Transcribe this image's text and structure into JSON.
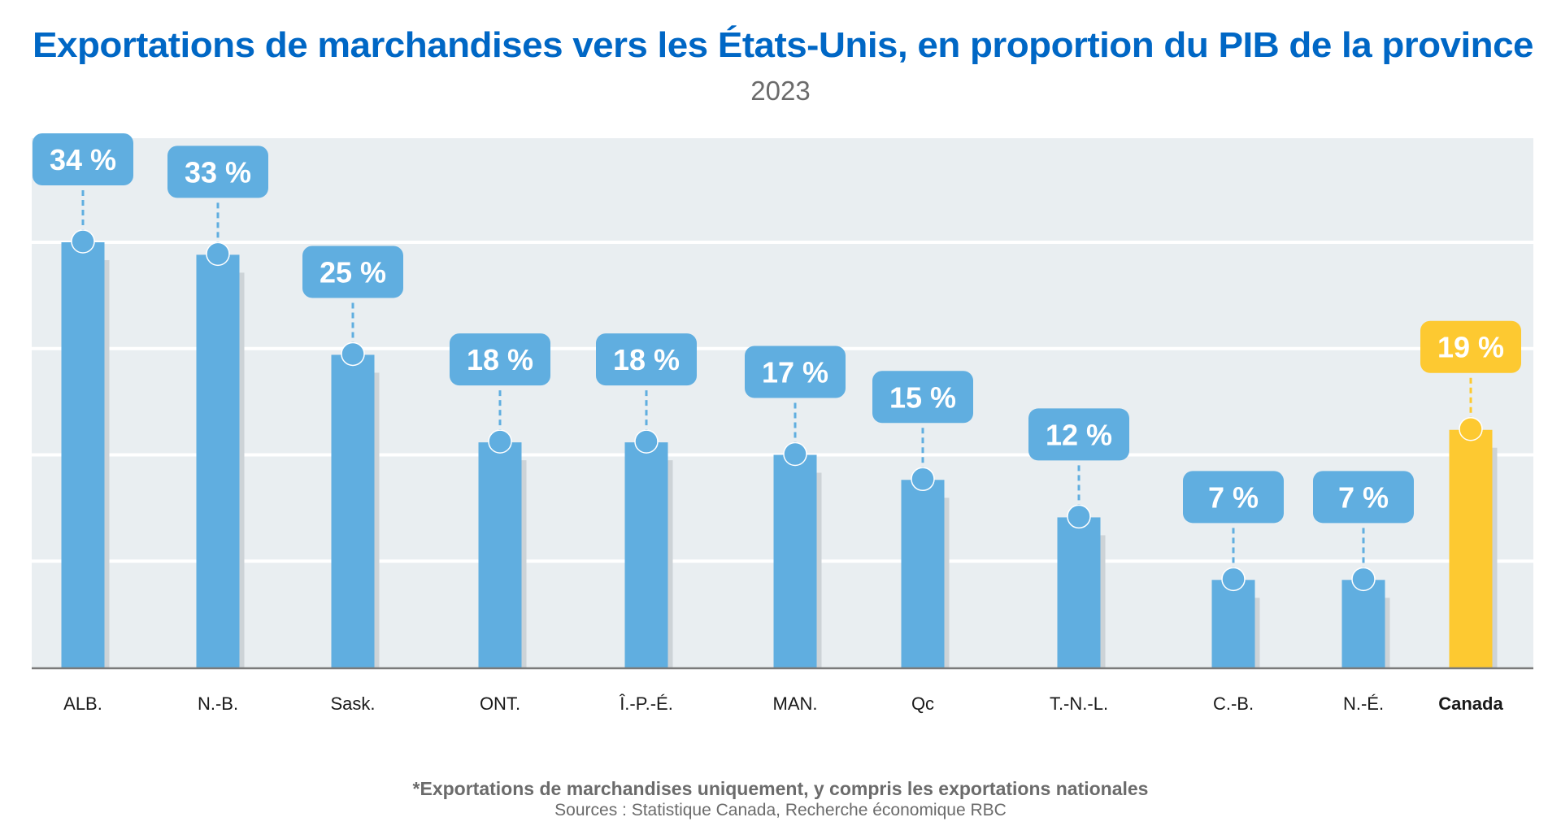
{
  "colors": {
    "title": "#0067c5",
    "bar": "#60aee0",
    "highlight_bar": "#fdc931",
    "plot_background": "#e9eef1",
    "gridline": "#ffffff",
    "baseline": "#7a7a7a",
    "shadow": "#cdd3d7",
    "label_text": "#ffffff",
    "footer_text": "#6b6b6b"
  },
  "chart_data": {
    "type": "bar",
    "title": "Exportations de marchandises vers les États-Unis, en proportion du PIB de la province",
    "subtitle": "2023",
    "xlabel": "",
    "ylabel": "",
    "unit": "%",
    "ylim": [
      0,
      42.5
    ],
    "gridlines": [
      8.5,
      17,
      25.5,
      34
    ],
    "grid": true,
    "legend": "none",
    "categories": [
      "ALB.",
      "N.-B.",
      "Sask.",
      "ONT.",
      "Î.-P.-É.",
      "MAN.",
      "Qc",
      "T.-N.-L.",
      "C.-B.",
      "N.-É.",
      "Canada"
    ],
    "values": [
      34,
      33,
      25,
      18,
      18,
      17,
      15,
      12,
      7,
      7,
      19
    ],
    "data_labels": [
      "34 %",
      "33 %",
      "25 %",
      "18 %",
      "18 %",
      "17 %",
      "15 %",
      "12 %",
      "7 %",
      "7 %",
      "19 %"
    ],
    "highlight": [
      false,
      false,
      false,
      false,
      false,
      false,
      false,
      false,
      false,
      false,
      true
    ]
  },
  "footer": {
    "note": "*Exportations de marchandises uniquement, y compris les exportations nationales",
    "source": "Sources : Statistique Canada, Recherche économique RBC"
  }
}
